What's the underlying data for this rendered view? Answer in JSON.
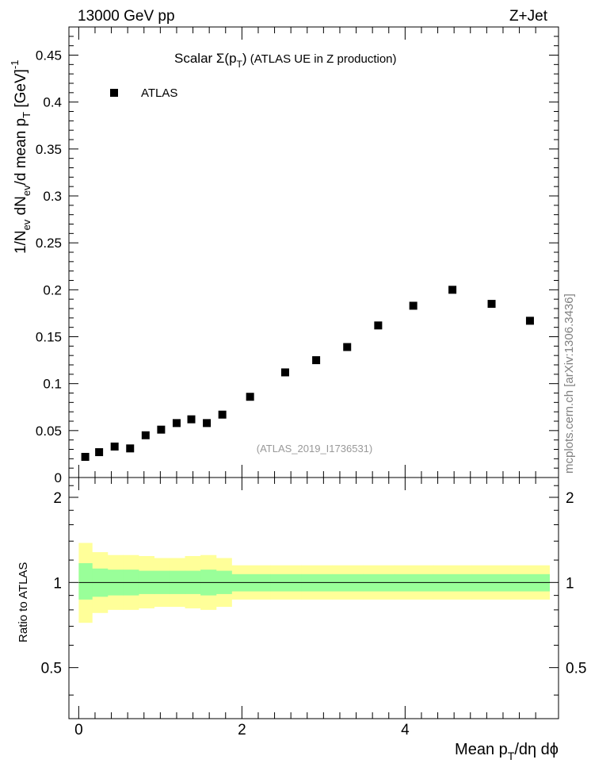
{
  "header": {
    "left": "13000 GeV pp",
    "right": "Z+Jet"
  },
  "side_label": "mcplots.cern.ch [arXiv:1306.3436]",
  "chart_data": {
    "type": "scatter",
    "title_main": "Scalar ",
    "title_sigma": "Σ(p",
    "title_sub": "T",
    "title_close": ")",
    "title_rest": " (ATLAS UE in Z production)",
    "analysis_label": "(ATLAS_2019_I1736531)",
    "legend": [
      "ATLAS"
    ],
    "legend_position": "top-left",
    "ylabel_top": "1/N",
    "ylabel_sub1": "ev",
    "ylabel_mid": " dN",
    "ylabel_sub2": "ev",
    "ylabel_tail": "/d mean p",
    "ylabel_sub3": "T",
    "ylabel_units": " [GeV]",
    "ylabel_sup": "-1",
    "ylabel_ratio": "Ratio to ATLAS",
    "xlabel_main": "Mean p",
    "xlabel_sub": "T",
    "xlabel_rest": "/dη dϕ",
    "xlim": [
      -0.12,
      5.88
    ],
    "ylim_top": [
      0,
      0.48
    ],
    "ylim_ratio": [
      0.33,
      2.35
    ],
    "yticks_top": [
      "0",
      "0.05",
      "0.1",
      "0.15",
      "0.2",
      "0.25",
      "0.3",
      "0.35",
      "0.4",
      "0.45"
    ],
    "yticks_ratio": [
      "0.5",
      "1",
      "2"
    ],
    "xticks": [
      "0",
      "2",
      "4"
    ],
    "bin_edges": [
      0.0,
      0.1625,
      0.3525,
      0.5425,
      0.7325,
      0.9225,
      1.1125,
      1.3025,
      1.4925,
      1.6825,
      1.8725,
      2.3475,
      2.7275,
      3.1075,
      3.4875,
      3.8675,
      4.3425,
      4.8175,
      5.2925,
      5.7675
    ],
    "series": [
      {
        "name": "ATLAS",
        "x": [
          0.08,
          0.25,
          0.44,
          0.63,
          0.82,
          1.01,
          1.2,
          1.38,
          1.57,
          1.76,
          2.1,
          2.53,
          2.91,
          3.29,
          3.67,
          4.1,
          4.58,
          5.06,
          5.53
        ],
        "y": [
          0.022,
          0.027,
          0.033,
          0.031,
          0.045,
          0.051,
          0.058,
          0.062,
          0.058,
          0.067,
          0.086,
          0.112,
          0.125,
          0.139,
          0.162,
          0.183,
          0.2,
          0.185,
          0.167
        ]
      }
    ],
    "ratio_band_yellow": {
      "lo": [
        0.72,
        0.78,
        0.8,
        0.8,
        0.81,
        0.82,
        0.82,
        0.81,
        0.8,
        0.82,
        0.87,
        0.87,
        0.87,
        0.87,
        0.87,
        0.87,
        0.87,
        0.87,
        0.87
      ],
      "hi": [
        1.38,
        1.28,
        1.25,
        1.25,
        1.24,
        1.22,
        1.22,
        1.24,
        1.25,
        1.22,
        1.15,
        1.15,
        1.15,
        1.15,
        1.15,
        1.15,
        1.15,
        1.15,
        1.15
      ]
    },
    "ratio_band_green": {
      "lo": [
        0.87,
        0.89,
        0.9,
        0.9,
        0.91,
        0.91,
        0.91,
        0.91,
        0.9,
        0.91,
        0.93,
        0.93,
        0.93,
        0.93,
        0.93,
        0.93,
        0.93,
        0.93,
        0.93
      ],
      "hi": [
        1.17,
        1.12,
        1.11,
        1.11,
        1.1,
        1.1,
        1.1,
        1.1,
        1.11,
        1.1,
        1.07,
        1.07,
        1.07,
        1.07,
        1.07,
        1.07,
        1.07,
        1.07,
        1.07
      ]
    },
    "colors": {
      "marker": "#000000",
      "band_outer": "#ffff99",
      "band_inner": "#99ff99",
      "analysis_label": "#999999",
      "side_label": "#808080"
    }
  }
}
